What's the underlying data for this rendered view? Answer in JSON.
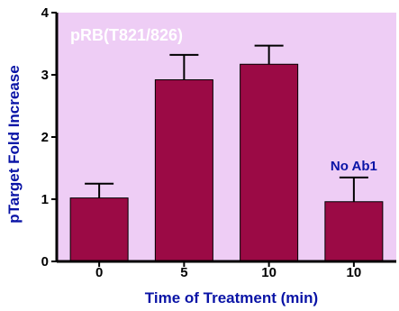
{
  "chart_data": {
    "type": "bar",
    "title": "pRB(T821/826)",
    "xlabel": "Time of Treatment (min)",
    "ylabel": "pTarget Fold Increase",
    "categories": [
      "0",
      "5",
      "10",
      "10"
    ],
    "values": [
      1.02,
      2.92,
      3.17,
      0.96
    ],
    "errors": [
      0.23,
      0.4,
      0.3,
      0.39
    ],
    "ylim": [
      0,
      4
    ],
    "yticks": [
      "0",
      "1",
      "2",
      "3",
      "4"
    ],
    "annotations": [
      {
        "text": "No Ab1",
        "category_index": 3
      }
    ],
    "grid": false,
    "legend": "none",
    "colors": {
      "plot_background": "#eecdf5",
      "bar_fill": "#9b0a45",
      "axis": "#000000",
      "title_text": "#ffffff",
      "label_text": "#0a14a6",
      "tick_text": "#000000"
    }
  }
}
